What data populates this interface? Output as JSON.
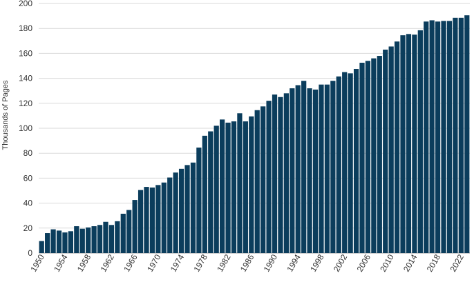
{
  "chart_data": {
    "type": "bar",
    "title": "",
    "xlabel": "",
    "ylabel": "Thousands of Pages",
    "ylim": [
      0,
      200
    ],
    "y_ticks": [
      0,
      20,
      40,
      60,
      80,
      100,
      120,
      140,
      160,
      180,
      200
    ],
    "grid": "horizontal",
    "bar_color": "#0b3d5c",
    "x_tick_labels": [
      "1950",
      "1954",
      "1958",
      "1962",
      "1966",
      "1970",
      "1974",
      "1978",
      "1982",
      "1986",
      "1990",
      "1994",
      "1998",
      "2002",
      "2006",
      "2010",
      "2014",
      "2018",
      "2022"
    ],
    "categories": [
      "1950",
      "1951",
      "1952",
      "1953",
      "1954",
      "1955",
      "1956",
      "1957",
      "1958",
      "1959",
      "1960",
      "1961",
      "1962",
      "1963",
      "1964",
      "1965",
      "1966",
      "1967",
      "1968",
      "1969",
      "1970",
      "1971",
      "1972",
      "1973",
      "1974",
      "1975",
      "1976",
      "1977",
      "1978",
      "1979",
      "1980",
      "1981",
      "1982",
      "1983",
      "1984",
      "1985",
      "1986",
      "1987",
      "1988",
      "1989",
      "1990",
      "1991",
      "1992",
      "1993",
      "1994",
      "1995",
      "1996",
      "1997",
      "1998",
      "1999",
      "2000",
      "2001",
      "2002",
      "2003",
      "2004",
      "2005",
      "2006",
      "2007",
      "2008",
      "2009",
      "2010",
      "2011",
      "2012",
      "2013",
      "2014",
      "2015",
      "2016",
      "2017",
      "2018",
      "2019",
      "2020",
      "2021",
      "2022",
      "2023"
    ],
    "values": [
      9.6,
      16,
      19,
      18,
      16.5,
      17.5,
      21.5,
      19.5,
      20.5,
      21.5,
      22.5,
      25,
      22.5,
      25.5,
      31.5,
      34.5,
      42.5,
      50.5,
      53,
      52.5,
      54.5,
      56.5,
      60.5,
      64.5,
      67.5,
      70.5,
      72.5,
      84.5,
      94,
      97.5,
      102,
      107,
      104.5,
      105.5,
      112,
      105.5,
      109.5,
      114.5,
      117.5,
      122,
      127,
      125,
      128,
      132,
      134.5,
      138,
      132,
      131,
      135,
      135,
      138,
      141.5,
      145,
      144,
      147.5,
      152.5,
      154,
      156,
      158,
      163,
      165.5,
      169.5,
      174.5,
      175.5,
      175,
      178.5,
      185.5,
      186.5,
      185.5,
      186,
      186,
      188.5,
      188.5,
      190.5
    ]
  }
}
